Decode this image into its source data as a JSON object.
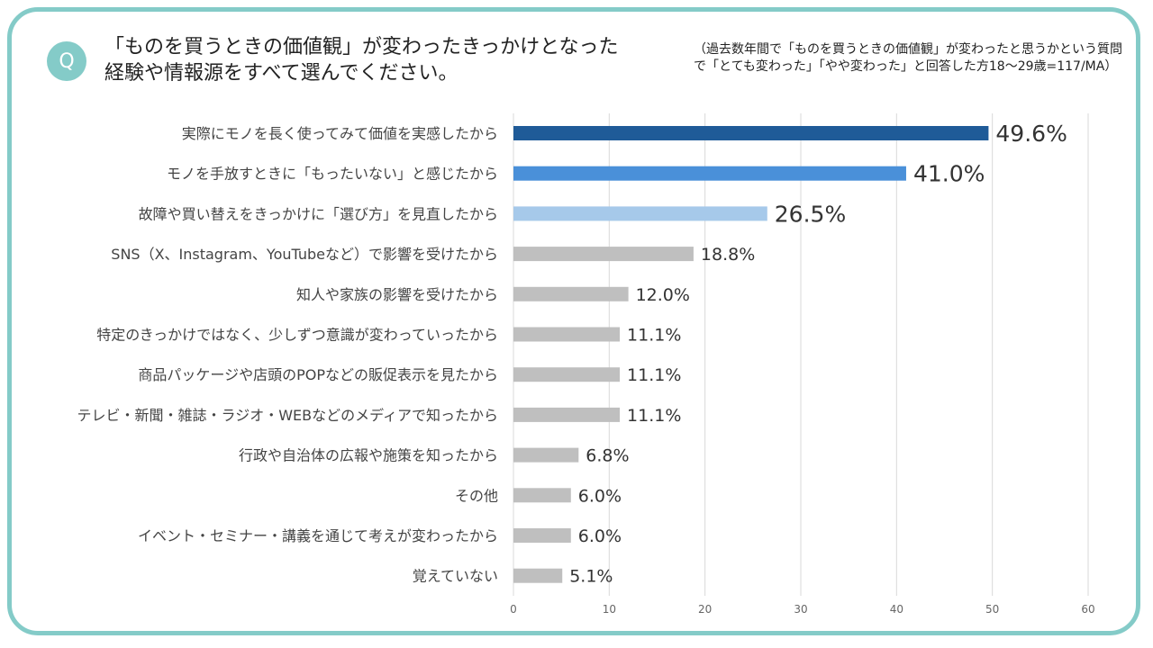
{
  "header": {
    "q_badge": "Q",
    "title": "「ものを買うときの価値観」が変わったきっかけとなった\n経験や情報源をすべて選んでください。",
    "note": "（過去数年間で「ものを買うときの価値観」が変わったと思うかという質問\nで「とても変わった」「やや変わった」と回答した方18～29歳=117/MA）"
  },
  "chart_data": {
    "type": "bar",
    "orientation": "horizontal",
    "title": "「ものを買うときの価値観」が変わったきっかけとなった経験や情報源をすべて選んでください。",
    "categories": [
      "実際にモノを長く使ってみて価値を実感したから",
      "モノを手放すときに「もったいない」と感じたから",
      "故障や買い替えをきっかけに「選び方」を見直したから",
      "SNS（X、Instagram、YouTubeなど）で影響を受けたから",
      "知人や家族の影響を受けたから",
      "特定のきっかけではなく、少しずつ意識が変わっていったから",
      "商品パッケージや店頭のPOPなどの販促表示を見たから",
      "テレビ・新聞・雑誌・ラジオ・WEBなどのメディアで知ったから",
      "行政や自治体の広報や施策を知ったから",
      "その他",
      "イベント・セミナー・講義を通じて考えが変わったから",
      "覚えていない"
    ],
    "values": [
      49.6,
      41.0,
      26.5,
      18.8,
      12.0,
      11.1,
      11.1,
      11.1,
      6.8,
      6.0,
      6.0,
      5.1
    ],
    "value_labels": [
      "49.6%",
      "41.0%",
      "26.5%",
      "18.8%",
      "12.0%",
      "11.1%",
      "11.1%",
      "11.1%",
      "6.8%",
      "6.0%",
      "6.0%",
      "5.1%"
    ],
    "colors": [
      "#1f5b98",
      "#4a90d9",
      "#a6c9ea",
      "#bfbfbf",
      "#bfbfbf",
      "#bfbfbf",
      "#bfbfbf",
      "#bfbfbf",
      "#bfbfbf",
      "#bfbfbf",
      "#bfbfbf",
      "#bfbfbf"
    ],
    "xlim": [
      0,
      60
    ],
    "xticks": [
      "0",
      "10",
      "20",
      "30",
      "40",
      "50",
      "60"
    ],
    "grid": true
  }
}
